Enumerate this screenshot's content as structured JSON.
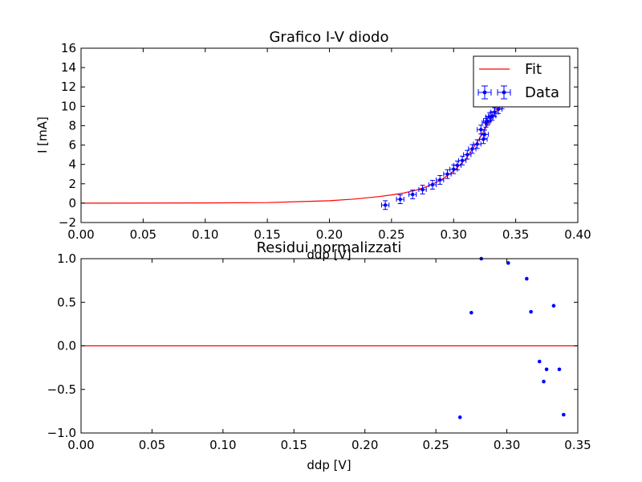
{
  "chart_data": [
    {
      "type": "scatter",
      "title": "Grafico I-V diodo",
      "xlabel": "ddp [V]",
      "ylabel": "I [mA]",
      "xlim": [
        0.0,
        0.4
      ],
      "ylim": [
        -2,
        16
      ],
      "xticks": [
        "0.00",
        "0.05",
        "0.10",
        "0.15",
        "0.20",
        "0.25",
        "0.30",
        "0.35",
        "0.40"
      ],
      "yticks": [
        "−2",
        "0",
        "2",
        "4",
        "6",
        "8",
        "10",
        "12",
        "14",
        "16"
      ],
      "grid": false,
      "legend_position": "top-right",
      "series": [
        {
          "name": "Fit",
          "kind": "line",
          "color": "#ff0000",
          "model": "shockley-exponential",
          "x": [
            0.0,
            0.1,
            0.15,
            0.2,
            0.22,
            0.24,
            0.25,
            0.26,
            0.27,
            0.28,
            0.29,
            0.3,
            0.31,
            0.32,
            0.325,
            0.33,
            0.335,
            0.34
          ],
          "y": [
            0.0,
            0.02,
            0.06,
            0.25,
            0.42,
            0.68,
            0.85,
            1.05,
            1.35,
            1.78,
            2.4,
            3.3,
            4.6,
            6.5,
            7.6,
            8.7,
            9.6,
            10.2
          ]
        },
        {
          "name": "Data",
          "kind": "errorbar",
          "color": "#0000ff",
          "x": [
            0.245,
            0.257,
            0.267,
            0.275,
            0.283,
            0.289,
            0.295,
            0.3,
            0.303,
            0.307,
            0.311,
            0.315,
            0.319,
            0.322,
            0.324,
            0.325,
            0.326,
            0.327,
            0.329,
            0.331,
            0.333,
            0.336,
            0.339
          ],
          "y": [
            -0.2,
            0.4,
            0.9,
            1.4,
            1.9,
            2.4,
            3.0,
            3.5,
            3.9,
            4.4,
            5.0,
            5.6,
            6.1,
            7.6,
            6.6,
            7.1,
            8.3,
            8.5,
            8.9,
            9.0,
            9.4,
            9.7,
            10.2
          ],
          "xerr": 0.003,
          "yerr": 0.45
        }
      ]
    },
    {
      "type": "scatter",
      "title": "Residui normalizzati",
      "xlabel": "ddp [V]",
      "ylabel": "",
      "xlim": [
        0.0,
        0.35
      ],
      "ylim": [
        -1.0,
        1.0
      ],
      "xticks": [
        "0.00",
        "0.05",
        "0.10",
        "0.15",
        "0.20",
        "0.25",
        "0.30",
        "0.35"
      ],
      "yticks": [
        "−1.0",
        "−0.5",
        "0.0",
        "0.5",
        "1.0"
      ],
      "grid": false,
      "series": [
        {
          "kind": "line",
          "color": "#ff0000",
          "x": [
            0.0,
            0.35
          ],
          "y": [
            0.0,
            0.0
          ]
        },
        {
          "kind": "points",
          "color": "#0000ff",
          "x": [
            0.267,
            0.275,
            0.282,
            0.301,
            0.314,
            0.317,
            0.323,
            0.326,
            0.328,
            0.333,
            0.337,
            0.34
          ],
          "y": [
            -0.82,
            0.38,
            1.0,
            0.95,
            0.77,
            0.39,
            -0.18,
            -0.41,
            -0.27,
            0.46,
            -0.27,
            -0.79
          ]
        }
      ]
    }
  ]
}
